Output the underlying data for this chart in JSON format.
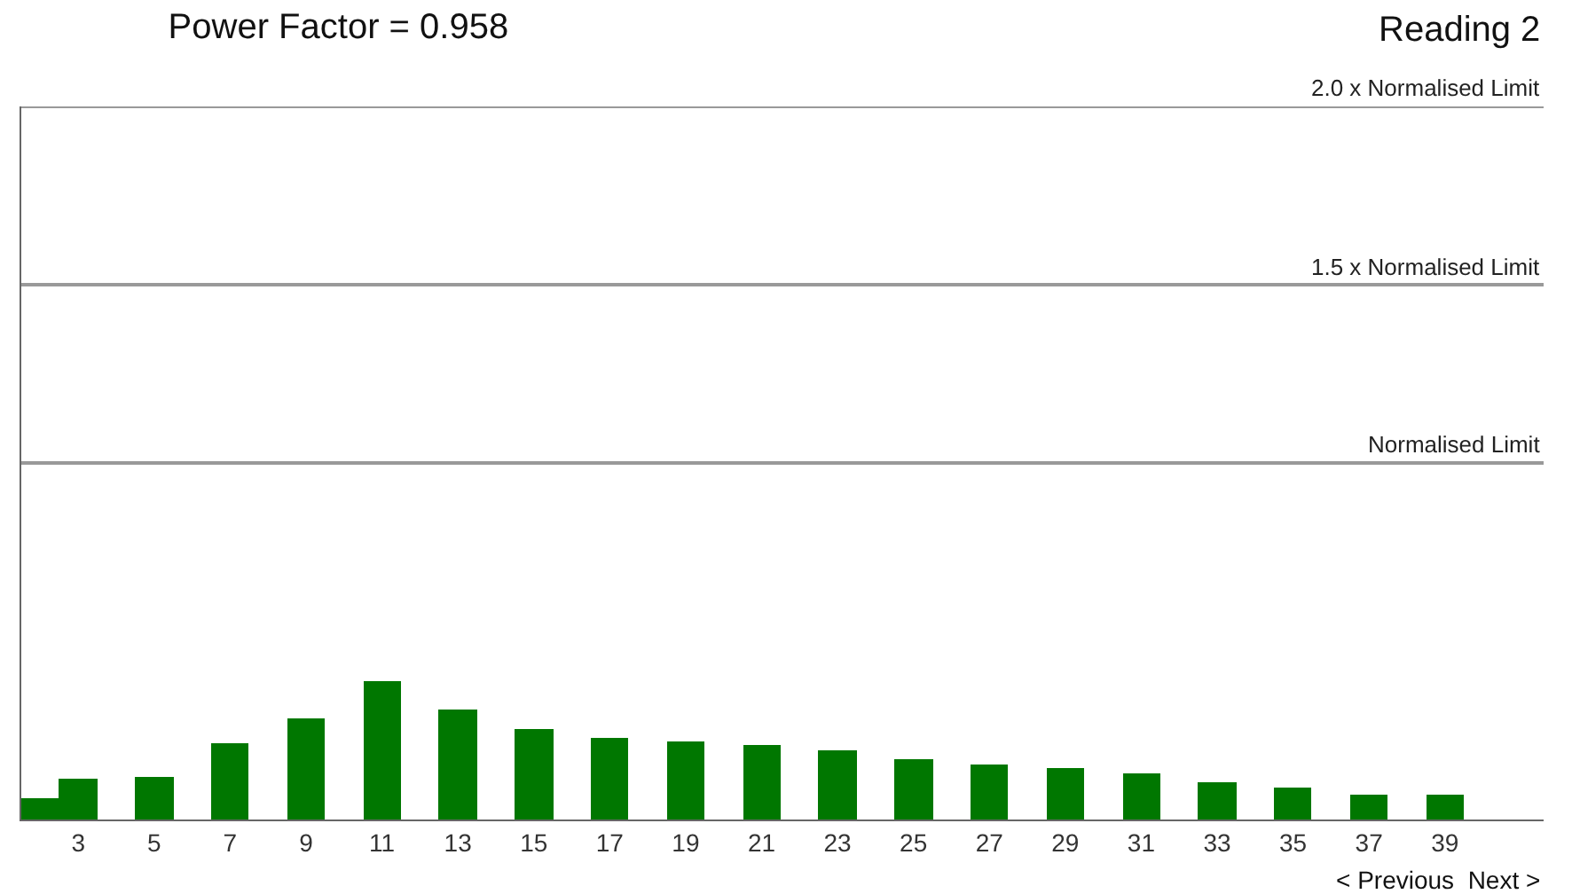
{
  "chart_data": {
    "type": "bar",
    "title": "Power Factor = 0.958",
    "x": [
      2,
      3,
      5,
      7,
      9,
      11,
      13,
      15,
      17,
      19,
      21,
      23,
      25,
      27,
      29,
      31,
      33,
      35,
      37,
      39
    ],
    "values": [
      0.06,
      0.115,
      0.12,
      0.215,
      0.283,
      0.39,
      0.31,
      0.255,
      0.23,
      0.22,
      0.21,
      0.195,
      0.17,
      0.155,
      0.145,
      0.13,
      0.105,
      0.09,
      0.07,
      0.07
    ],
    "color": "#007700",
    "xlim": [
      1.5,
      41.6
    ],
    "xticks": [
      3,
      5,
      7,
      9,
      11,
      13,
      15,
      17,
      19,
      21,
      23,
      25,
      27,
      29,
      31,
      33,
      35,
      37,
      39
    ],
    "ylim": [
      0,
      2.0
    ],
    "tick_labels": "x",
    "ref_lines": [
      {
        "axis": "y",
        "value": 1.0,
        "label": "Normalised Limit",
        "color": "#999999"
      },
      {
        "axis": "y",
        "value": 1.5,
        "label": "1.5 x Normalised Limit",
        "color": "#999999"
      },
      {
        "axis": "y",
        "value": 2.0,
        "label": "2.0 x Normalised Limit",
        "color": "#999999"
      }
    ],
    "annotations": [
      "Reading 2",
      "< Previous  Next >"
    ]
  }
}
